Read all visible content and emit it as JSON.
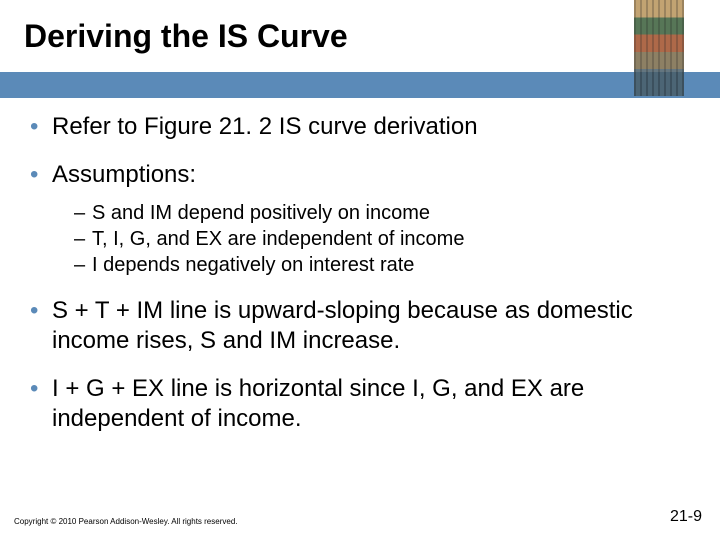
{
  "colors": {
    "accent_bar": "#5b8ab8",
    "bullet_l1": "#5b8ab8",
    "background": "#ffffff",
    "text": "#000000"
  },
  "typography": {
    "title_fontsize": 32,
    "bullet_l1_fontsize": 24,
    "bullet_l2_fontsize": 20,
    "copyright_fontsize": 8,
    "pagenum_fontsize": 16,
    "font_family": "Verdana"
  },
  "title": "Deriving the IS Curve",
  "bullets": [
    {
      "level": 1,
      "text": "Refer to Figure 21. 2 IS curve derivation"
    },
    {
      "level": 1,
      "text": "Assumptions:"
    },
    {
      "level": 2,
      "text": "S and IM depend positively on income"
    },
    {
      "level": 2,
      "text": "T, I, G, and EX are independent of income"
    },
    {
      "level": 2,
      "text": "I depends negatively on interest rate"
    },
    {
      "level": 1,
      "text": "S + T + IM line is upward-sloping because as domestic income rises, S and IM increase."
    },
    {
      "level": 1,
      "text": "I + G + EX line is horizontal since I, G, and EX are independent of income."
    }
  ],
  "copyright": "Copyright © 2010 Pearson Addison-Wesley. All rights reserved.",
  "page_number": "21-9"
}
